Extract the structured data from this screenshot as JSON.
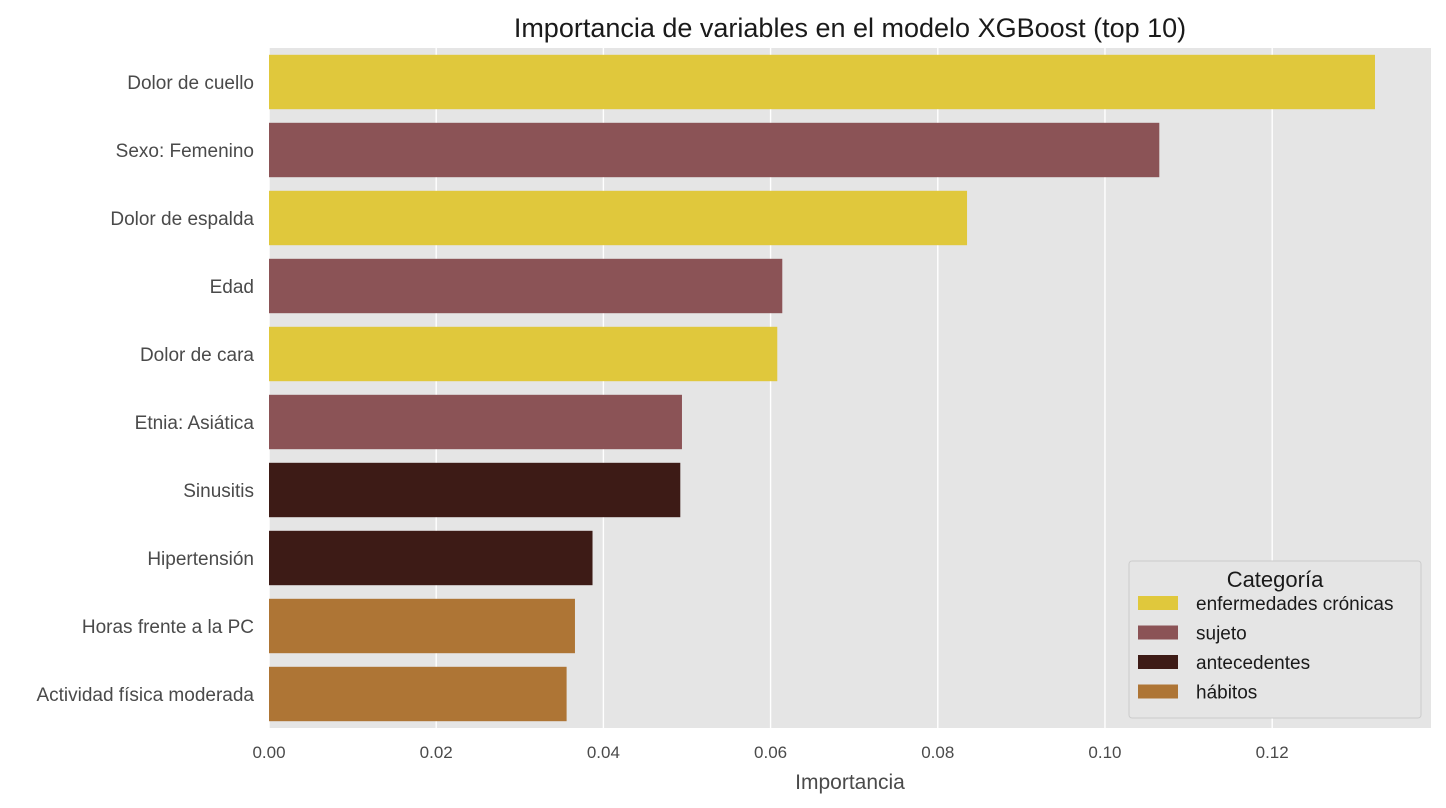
{
  "chart_data": {
    "type": "bar",
    "orientation": "horizontal",
    "title": "Importancia de variables en el modelo XGBoost (top 10)",
    "xlabel": "Importancia",
    "ylabel": "",
    "xlim": [
      0,
      0.139
    ],
    "x_ticks": [
      "0.00",
      "0.02",
      "0.04",
      "0.06",
      "0.08",
      "0.10",
      "0.12"
    ],
    "x_tick_values": [
      0,
      0.02,
      0.04,
      0.06,
      0.08,
      0.1,
      0.12
    ],
    "grid": true,
    "background": "#e5e5e5",
    "legend": {
      "title": "Categoría",
      "position": "lower-right",
      "entries": [
        {
          "label": "enfermedades crónicas",
          "color": "#e0c83c"
        },
        {
          "label": "sujeto",
          "color": "#8b5356"
        },
        {
          "label": "antecedentes",
          "color": "#3d1b16"
        },
        {
          "label": "hábitos",
          "color": "#ae7535"
        }
      ]
    },
    "categories": [
      "Dolor de cuello",
      "Sexo: Femenino",
      "Dolor de espalda",
      "Edad",
      "Dolor de cara",
      "Etnia: Asiática",
      "Sinusitis",
      "Hipertensión",
      "Horas frente a la PC",
      "Actividad física moderada"
    ],
    "values": [
      0.1323,
      0.1065,
      0.0835,
      0.0614,
      0.0608,
      0.0494,
      0.0492,
      0.0387,
      0.0366,
      0.0356
    ],
    "groups": [
      "enfermedades crónicas",
      "sujeto",
      "enfermedades crónicas",
      "sujeto",
      "enfermedades crónicas",
      "sujeto",
      "antecedentes",
      "antecedentes",
      "hábitos",
      "hábitos"
    ]
  }
}
